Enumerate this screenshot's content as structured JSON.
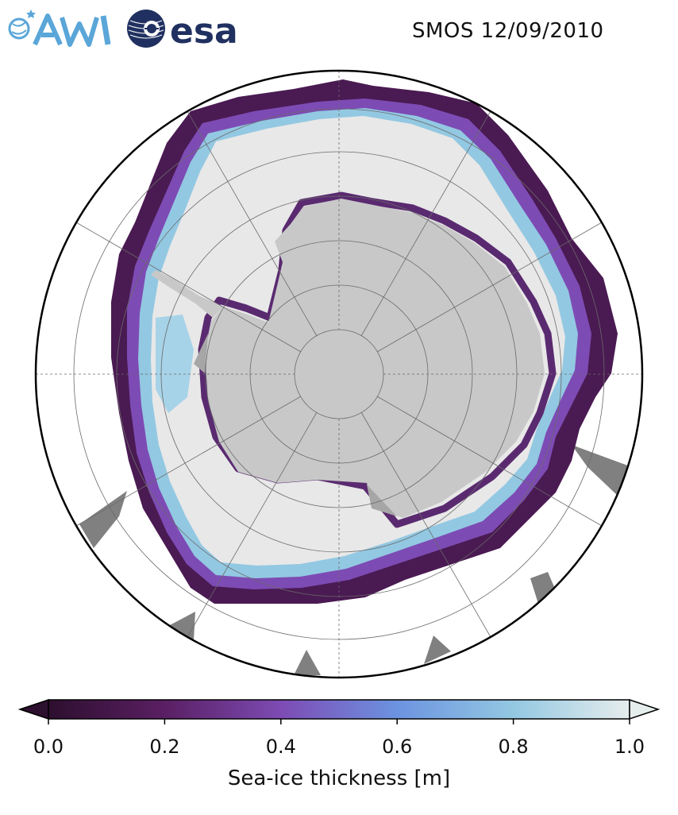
{
  "header": {
    "title": "SMOS 12/09/2010",
    "logo_left_text": "AWI",
    "logo_right_text": "esa"
  },
  "map": {
    "projection": "south-polar-stereographic",
    "land_color": "#c8c8c8",
    "thick_ice_color": "#e8e8e8",
    "missing_color": "#808080",
    "graticule_color": "#6a6a6a",
    "colormap": [
      "#2d0f2e",
      "#5a1f63",
      "#7d4bb4",
      "#6c93e0",
      "#93c8e2",
      "#e6eded"
    ]
  },
  "colorbar": {
    "label": "Sea-ice thickness [m]",
    "min": 0.0,
    "max": 1.0,
    "ticks": [
      "0.0",
      "0.2",
      "0.4",
      "0.6",
      "0.8",
      "1.0"
    ],
    "extend": "both"
  }
}
